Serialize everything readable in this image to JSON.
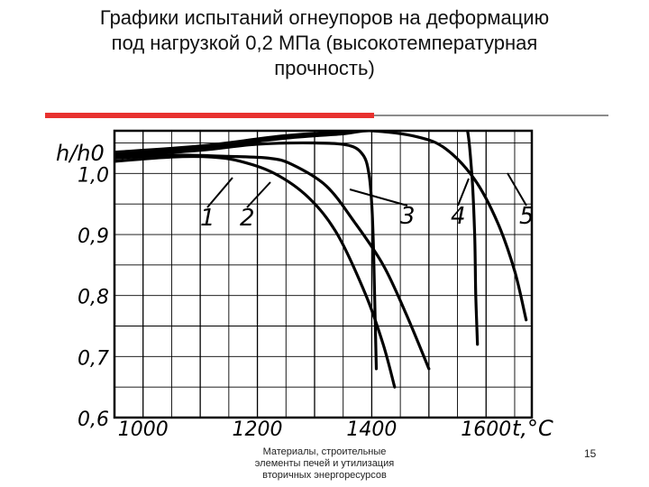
{
  "slide": {
    "title_lines": [
      "Графики испытаний огнеупоров на деформацию",
      "под нагрузкой 0,2 МПа (высокотемпературная",
      "прочность)"
    ],
    "footer_lines": [
      "Материалы, строительные",
      "элементы печей и утилизация",
      "вторичных энергоресурсов"
    ],
    "page_number": "15",
    "accent_color": "#e8312f"
  },
  "chart_data": {
    "type": "line",
    "ylabel": "h/h0",
    "xlabel": "t,°C",
    "xlim": [
      950,
      1680
    ],
    "ylim": [
      0.6,
      1.07
    ],
    "x_ticks": [
      1000,
      1200,
      1400,
      1600
    ],
    "x_tick_labels": [
      "1000",
      "1200",
      "1400",
      "1600"
    ],
    "y_ticks": [
      0.6,
      0.7,
      0.8,
      0.9,
      1.0
    ],
    "y_tick_labels": [
      "0,6",
      "0,7",
      "0,8",
      "0,9",
      "1,0"
    ],
    "grid": true,
    "series": [
      {
        "name": "1",
        "points": [
          [
            950,
            1.02
          ],
          [
            1050,
            1.027
          ],
          [
            1120,
            1.027
          ],
          [
            1170,
            1.02
          ],
          [
            1230,
            1.0
          ],
          [
            1290,
            0.96
          ],
          [
            1340,
            0.9
          ],
          [
            1390,
            0.8
          ],
          [
            1420,
            0.72
          ],
          [
            1440,
            0.65
          ]
        ]
      },
      {
        "name": "2",
        "points": [
          [
            950,
            1.025
          ],
          [
            1050,
            1.03
          ],
          [
            1150,
            1.028
          ],
          [
            1220,
            1.025
          ],
          [
            1260,
            1.015
          ],
          [
            1320,
            0.98
          ],
          [
            1370,
            0.92
          ],
          [
            1420,
            0.85
          ],
          [
            1460,
            0.77
          ],
          [
            1500,
            0.68
          ]
        ]
      },
      {
        "name": "3",
        "points": [
          [
            950,
            1.028
          ],
          [
            1100,
            1.038
          ],
          [
            1200,
            1.048
          ],
          [
            1300,
            1.05
          ],
          [
            1360,
            1.046
          ],
          [
            1385,
            1.03
          ],
          [
            1395,
            1.0
          ],
          [
            1400,
            0.95
          ],
          [
            1403,
            0.88
          ],
          [
            1405,
            0.8
          ],
          [
            1408,
            0.68
          ]
        ]
      },
      {
        "name": "4",
        "points": [
          [
            950,
            1.032
          ],
          [
            1100,
            1.042
          ],
          [
            1250,
            1.058
          ],
          [
            1350,
            1.065
          ],
          [
            1400,
            1.07
          ],
          [
            1480,
            1.06
          ],
          [
            1530,
            1.04
          ],
          [
            1580,
            0.99
          ],
          [
            1620,
            0.92
          ],
          [
            1650,
            0.84
          ],
          [
            1670,
            0.76
          ]
        ]
      },
      {
        "name": "5",
        "points": [
          [
            950,
            1.035
          ],
          [
            1100,
            1.045
          ],
          [
            1250,
            1.062
          ],
          [
            1400,
            1.072
          ],
          [
            1490,
            1.082
          ],
          [
            1545,
            1.085
          ],
          [
            1565,
            1.08
          ],
          [
            1575,
            1.0
          ],
          [
            1580,
            0.9
          ],
          [
            1582,
            0.8
          ],
          [
            1585,
            0.72
          ]
        ]
      }
    ]
  }
}
